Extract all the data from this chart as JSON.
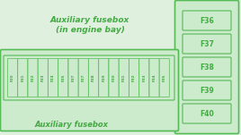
{
  "bg_color": "#dff0df",
  "border_color": "#55bb55",
  "fuse_fill": "#cceacc",
  "fuse_border": "#55bb55",
  "text_color": "#44aa44",
  "title_top": "Auxiliary fusebox\n(in engine bay)",
  "title_bottom": "Auxiliary fusebox",
  "row_fuses": [
    "F20",
    "F21",
    "F22",
    "F23",
    "F24",
    "F25",
    "F27",
    "F27",
    "F28",
    "F29",
    "F30",
    "F31",
    "F32",
    "F33",
    "F34",
    "F35"
  ],
  "side_fuses": [
    "F36",
    "F37",
    "F38",
    "F39",
    "F40"
  ],
  "fig_bg": "#dff0df",
  "fig_w": 2.68,
  "fig_h": 1.51,
  "dpi": 100
}
